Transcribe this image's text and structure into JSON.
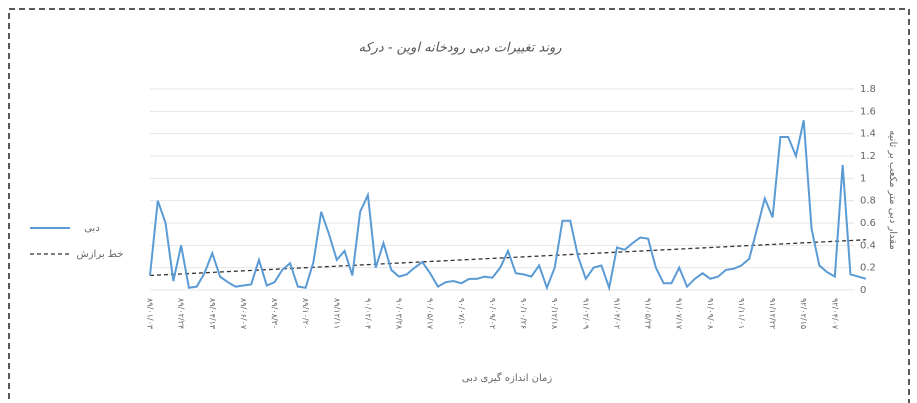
{
  "chart_data": {
    "type": "line",
    "title": "روند تغییرات دبی رودخانه اوین - درکه",
    "x_label": "زمان اندازه گیری دبی",
    "y_label": "مقدار دبی متر مکعب بر ثانیه",
    "categories": [
      "۸۹/۰۱/۰۳",
      null,
      null,
      null,
      "۸۹/۰۲/۲۴",
      null,
      null,
      null,
      "۸۹/۰۴/۱۳",
      null,
      null,
      null,
      "۸۹/۰۶/۰۷",
      null,
      null,
      null,
      "۸۹/۰۸/۳۰",
      null,
      null,
      null,
      "۸۹/۱۰/۲۰",
      null,
      null,
      null,
      "۸۹/۱۲/۱۱",
      null,
      null,
      null,
      "۹۰/۰۲/۰۴",
      null,
      null,
      null,
      "۹۰/۰۳/۲۸",
      null,
      null,
      null,
      "۹۰/۰۵/۱۷",
      null,
      null,
      null,
      "۹۰/۰۷/۱۰",
      null,
      null,
      null,
      "۹۰/۰۹/۰۲",
      null,
      null,
      null,
      "۹۰/۱۰/۲۶",
      null,
      null,
      null,
      "۹۰/۱۲/۱۸",
      null,
      null,
      null,
      "۹۱/۰۲/۰۹",
      null,
      null,
      null,
      "۹۱/۰۴/۰۲",
      null,
      null,
      null,
      "۹۱/۰۵/۲۴",
      null,
      null,
      null,
      "۹۱/۰۷/۱۷",
      null,
      null,
      null,
      "۹۱/۰۹/۰۸",
      null,
      null,
      null,
      "۹۱/۱۱/۰۱",
      null,
      null,
      null,
      "۹۱/۱۲/۲۲",
      null,
      null,
      null,
      "۹۲/۰۲/۱۵",
      null,
      null,
      null,
      "۹۲/۰۴/۰۷",
      null,
      null,
      null,
      null
    ],
    "series": [
      {
        "name": "دبی",
        "color": "#5b9bd5",
        "values": [
          0.13,
          0.8,
          0.6,
          0.08,
          0.4,
          0.02,
          0.03,
          0.15,
          0.33,
          0.12,
          0.07,
          0.03,
          0.04,
          0.05,
          0.27,
          0.04,
          0.07,
          0.18,
          0.24,
          0.03,
          0.02,
          0.25,
          0.7,
          0.5,
          0.27,
          0.35,
          0.13,
          0.7,
          0.85,
          0.2,
          0.42,
          0.18,
          0.12,
          0.14,
          0.2,
          0.25,
          0.15,
          0.03,
          0.07,
          0.08,
          0.06,
          0.1,
          0.1,
          0.12,
          0.11,
          0.2,
          0.35,
          0.15,
          0.14,
          0.12,
          0.22,
          0.02,
          0.2,
          0.62,
          0.62,
          0.3,
          0.1,
          0.2,
          0.22,
          0.02,
          0.38,
          0.36,
          0.42,
          0.47,
          0.46,
          0.2,
          0.06,
          0.06,
          0.2,
          0.03,
          0.1,
          0.15,
          0.1,
          0.12,
          0.18,
          0.19,
          0.22,
          0.28,
          0.55,
          0.82,
          0.65,
          1.37,
          1.37,
          1.2,
          1.52,
          0.55,
          0.22,
          0.16,
          0.12,
          1.12,
          0.14,
          0.12,
          0.1
        ]
      }
    ],
    "trendline": {
      "name": "خط برازش",
      "color": "#333333",
      "start": 0.13,
      "end": 0.45
    },
    "ylim": [
      0,
      1.8
    ],
    "yticks": [
      0,
      0.2,
      0.4,
      0.6,
      0.8,
      1,
      1.2,
      1.4,
      1.6,
      1.8
    ],
    "grid": true,
    "legend": "left"
  }
}
